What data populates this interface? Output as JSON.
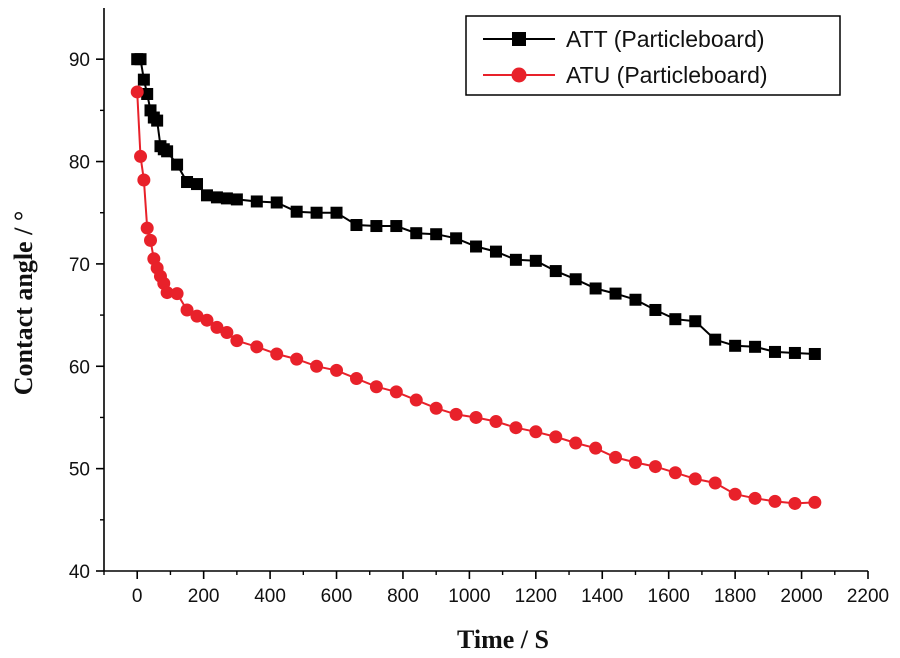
{
  "chart_data": {
    "type": "line",
    "title": "",
    "xlabel": "Time / S",
    "ylabel": "Contact angle / °",
    "xlim": [
      -100,
      2200
    ],
    "ylim": [
      40,
      95
    ],
    "xticks": [
      0,
      200,
      400,
      600,
      800,
      1000,
      1200,
      1400,
      1600,
      1800,
      2000,
      2200
    ],
    "yticks": [
      40,
      50,
      60,
      70,
      80,
      90
    ],
    "grid": false,
    "legend_position": "top-right",
    "series": [
      {
        "name": "ATT (Particleboard)",
        "color": "#000000",
        "marker": "square",
        "x": [
          0,
          10,
          20,
          30,
          40,
          50,
          60,
          70,
          80,
          90,
          120,
          150,
          180,
          210,
          240,
          270,
          300,
          360,
          420,
          480,
          540,
          600,
          660,
          720,
          780,
          840,
          900,
          960,
          1020,
          1080,
          1140,
          1200,
          1260,
          1320,
          1380,
          1440,
          1500,
          1560,
          1620,
          1680,
          1740,
          1800,
          1860,
          1920,
          1980,
          2040
        ],
        "y": [
          90.0,
          90.0,
          88.0,
          86.6,
          85.0,
          84.3,
          84.0,
          81.5,
          81.2,
          81.0,
          79.7,
          78.0,
          77.8,
          76.7,
          76.5,
          76.4,
          76.3,
          76.1,
          76.0,
          75.1,
          75.0,
          75.0,
          73.8,
          73.7,
          73.7,
          73.0,
          72.9,
          72.5,
          71.7,
          71.2,
          70.4,
          70.3,
          69.3,
          68.5,
          67.6,
          67.1,
          66.5,
          65.5,
          64.6,
          64.4,
          62.6,
          62.0,
          61.9,
          61.4,
          61.3,
          61.2
        ]
      },
      {
        "name": "ATU (Particleboard)",
        "color": "#e8212a",
        "marker": "circle",
        "x": [
          0,
          10,
          20,
          30,
          40,
          50,
          60,
          70,
          80,
          90,
          120,
          150,
          180,
          210,
          240,
          270,
          300,
          360,
          420,
          480,
          540,
          600,
          660,
          720,
          780,
          840,
          900,
          960,
          1020,
          1080,
          1140,
          1200,
          1260,
          1320,
          1380,
          1440,
          1500,
          1560,
          1620,
          1680,
          1740,
          1800,
          1860,
          1920,
          1980,
          2040
        ],
        "y": [
          86.8,
          80.5,
          78.2,
          73.5,
          72.3,
          70.5,
          69.6,
          68.8,
          68.1,
          67.2,
          67.1,
          65.5,
          64.9,
          64.5,
          63.8,
          63.3,
          62.5,
          61.9,
          61.2,
          60.7,
          60.0,
          59.6,
          58.8,
          58.0,
          57.5,
          56.7,
          55.9,
          55.3,
          55.0,
          54.6,
          54.0,
          53.6,
          53.1,
          52.5,
          52.0,
          51.1,
          50.6,
          50.2,
          49.6,
          49.0,
          48.6,
          47.5,
          47.1,
          46.8,
          46.6,
          46.7
        ]
      }
    ]
  }
}
